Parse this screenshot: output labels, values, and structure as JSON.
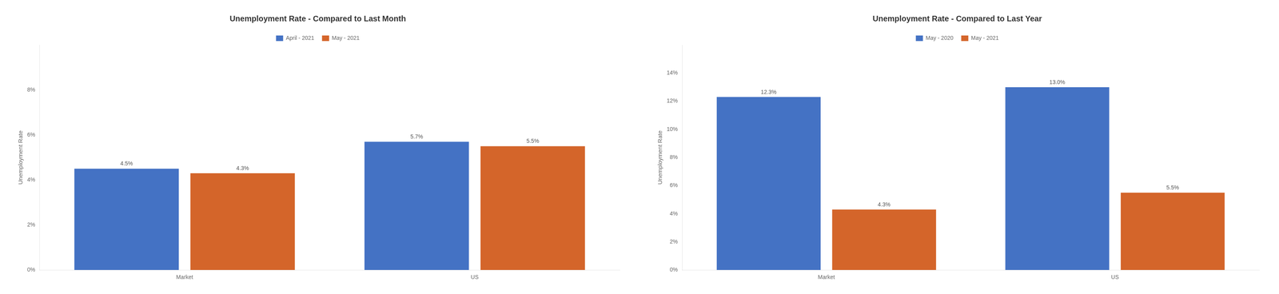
{
  "chart_data": [
    {
      "type": "bar",
      "title": "Unemployment Rate - Compared to Last Month",
      "categories": [
        "Market",
        "US"
      ],
      "series": [
        {
          "name": "April - 2021",
          "color": "#4472C4",
          "values": [
            4.5,
            5.7
          ],
          "value_labels": [
            "4.5%",
            "5.7%"
          ]
        },
        {
          "name": "May - 2021",
          "color": "#D4652A",
          "values": [
            4.3,
            5.5
          ],
          "value_labels": [
            "4.3%",
            "5.5%"
          ]
        }
      ],
      "ylabel": "Unemployment Rate",
      "ylim": [
        0,
        10
      ],
      "yticks": [
        {
          "value": 0,
          "label": "0%"
        },
        {
          "value": 2,
          "label": "2%"
        },
        {
          "value": 4,
          "label": "4%"
        },
        {
          "value": 6,
          "label": "6%"
        },
        {
          "value": 8,
          "label": "8%"
        }
      ],
      "grid": false,
      "legend": "top",
      "data_labels": true
    },
    {
      "type": "bar",
      "title": "Unemployment Rate - Compared to Last Year",
      "categories": [
        "Market",
        "US"
      ],
      "series": [
        {
          "name": "May - 2020",
          "color": "#4472C4",
          "values": [
            12.3,
            13.0
          ],
          "value_labels": [
            "12.3%",
            "13.0%"
          ]
        },
        {
          "name": "May - 2021",
          "color": "#D4652A",
          "values": [
            4.3,
            5.5
          ],
          "value_labels": [
            "4.3%",
            "5.5%"
          ]
        }
      ],
      "ylabel": "Unemployment Rate",
      "ylim": [
        0,
        16
      ],
      "yticks": [
        {
          "value": 0,
          "label": "0%"
        },
        {
          "value": 2,
          "label": "2%"
        },
        {
          "value": 4,
          "label": "4%"
        },
        {
          "value": 6,
          "label": "6%"
        },
        {
          "value": 8,
          "label": "8%"
        },
        {
          "value": 10,
          "label": "10%"
        },
        {
          "value": 12,
          "label": "12%"
        },
        {
          "value": 14,
          "label": "14%"
        }
      ],
      "grid": false,
      "legend": "top",
      "data_labels": true
    }
  ]
}
